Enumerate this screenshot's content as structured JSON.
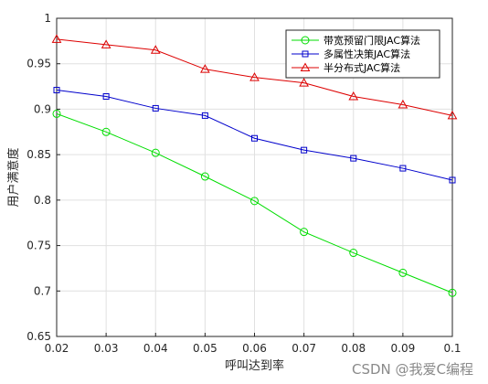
{
  "chart_data": {
    "type": "line",
    "xlabel": "呼叫达到率",
    "ylabel": "用户满意度",
    "x": [
      0.02,
      0.03,
      0.04,
      0.05,
      0.06,
      0.07,
      0.08,
      0.09,
      0.1
    ],
    "x_ticks": [
      "0.02",
      "0.03",
      "0.04",
      "0.05",
      "0.06",
      "0.07",
      "0.08",
      "0.09",
      "0.1"
    ],
    "xlim": [
      0.02,
      0.1
    ],
    "ylim": [
      0.65,
      1.0
    ],
    "y_ticks": [
      "0.65",
      "0.7",
      "0.75",
      "0.8",
      "0.85",
      "0.9",
      "0.95",
      "1"
    ],
    "grid": true,
    "legend_position": "top-right",
    "series": [
      {
        "name": "带宽预留门限JAC算法",
        "color": "#00dd00",
        "marker": "circle",
        "values": [
          0.895,
          0.875,
          0.852,
          0.826,
          0.799,
          0.765,
          0.742,
          0.72,
          0.698
        ]
      },
      {
        "name": "多属性决策JAC算法",
        "color": "#0000cc",
        "marker": "square",
        "values": [
          0.921,
          0.914,
          0.901,
          0.893,
          0.868,
          0.855,
          0.846,
          0.835,
          0.822
        ]
      },
      {
        "name": "半分布式JAC算法",
        "color": "#dd0000",
        "marker": "triangle",
        "values": [
          0.977,
          0.971,
          0.965,
          0.944,
          0.935,
          0.929,
          0.914,
          0.905,
          0.893
        ]
      }
    ]
  },
  "watermark": "CSDN @我爱C编程"
}
